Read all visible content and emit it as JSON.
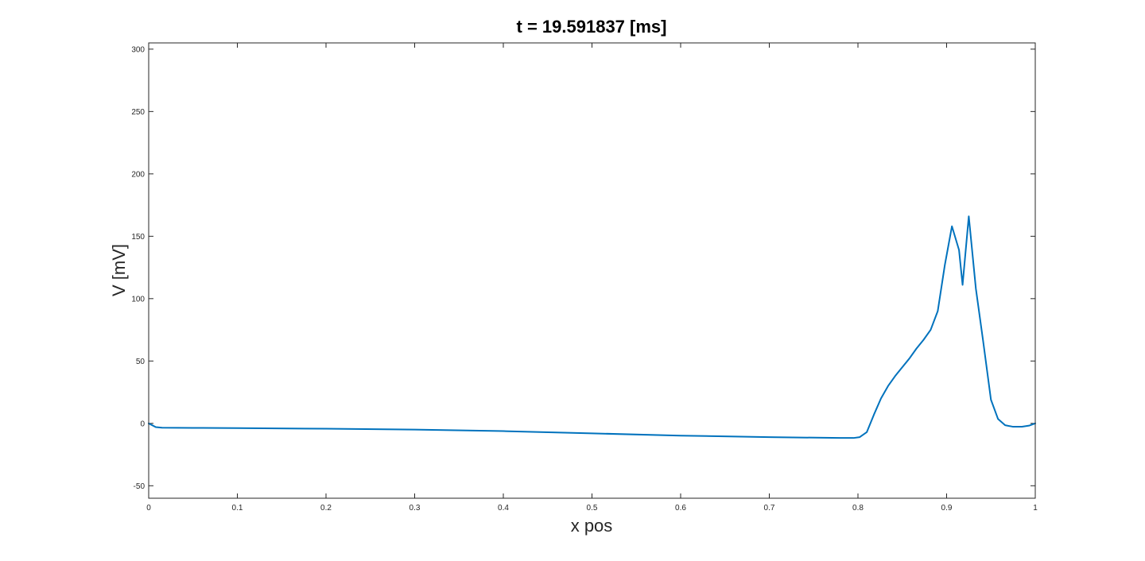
{
  "chart_data": {
    "type": "line",
    "title": "t = 19.591837 [ms]",
    "xlabel": "x pos",
    "ylabel": "V [mV]",
    "xlim": [
      0,
      1
    ],
    "ylim": [
      -60,
      305
    ],
    "xticks": [
      0,
      0.1,
      0.2,
      0.3,
      0.4,
      0.5,
      0.6,
      0.7,
      0.8,
      0.9,
      1
    ],
    "xtick_labels": [
      "0",
      "0.1",
      "0.2",
      "0.3",
      "0.4",
      "0.5",
      "0.6",
      "0.7",
      "0.8",
      "0.9",
      "1"
    ],
    "yticks": [
      -50,
      0,
      50,
      100,
      150,
      200,
      250,
      300
    ],
    "ytick_labels": [
      "-50",
      "0",
      "50",
      "100",
      "150",
      "200",
      "250",
      "300"
    ],
    "grid": false,
    "box": true,
    "series": [
      {
        "color": "#0072BD",
        "x": [
          0,
          0.008,
          0.015,
          0.05,
          0.1,
          0.2,
          0.3,
          0.4,
          0.5,
          0.6,
          0.7,
          0.78,
          0.795,
          0.802,
          0.81,
          0.818,
          0.826,
          0.834,
          0.842,
          0.85,
          0.858,
          0.866,
          0.874,
          0.882,
          0.89,
          0.898,
          0.906,
          0.914,
          0.918,
          0.925,
          0.933,
          0.941,
          0.95,
          0.958,
          0.966,
          0.975,
          0.985,
          0.993,
          1
        ],
        "y": [
          0,
          -3,
          -3.5,
          -3.6,
          -3.8,
          -4.3,
          -5,
          -6.2,
          -8,
          -9.8,
          -11,
          -11.7,
          -11.7,
          -11,
          -7,
          7,
          20,
          30,
          38,
          45,
          52,
          60,
          67,
          75,
          90,
          127,
          158,
          139,
          111,
          166,
          108,
          67,
          19,
          3.5,
          -1.5,
          -2.7,
          -2.7,
          -1.8,
          0
        ]
      }
    ]
  }
}
